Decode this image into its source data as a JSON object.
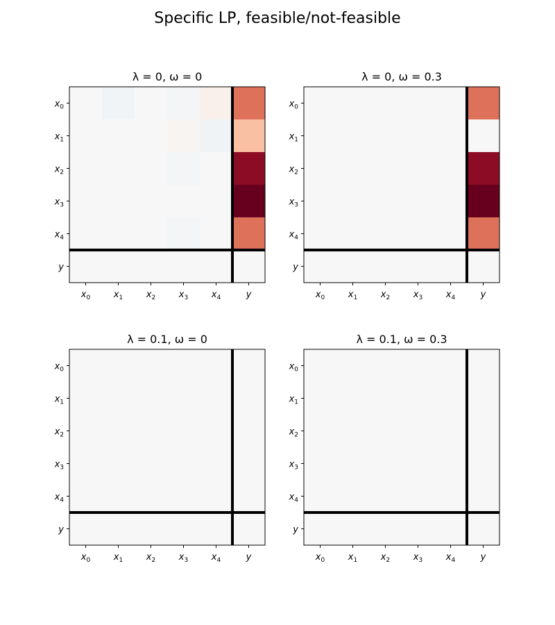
{
  "figure": {
    "title": "Specific LP, feasible/not-feasible"
  },
  "chart_data": [
    {
      "type": "heatmap",
      "title_parts": {
        "lambda": "λ = 0",
        "omega": "ω = 0"
      },
      "title": "λ = 0, ω = 0",
      "row_labels": [
        [
          "x",
          "0"
        ],
        [
          "x",
          "1"
        ],
        [
          "x",
          "2"
        ],
        [
          "x",
          "3"
        ],
        [
          "x",
          "4"
        ],
        [
          "y",
          ""
        ]
      ],
      "col_labels": [
        [
          "x",
          "0"
        ],
        [
          "x",
          "1"
        ],
        [
          "x",
          "2"
        ],
        [
          "x",
          "3"
        ],
        [
          "x",
          "4"
        ],
        [
          "y",
          ""
        ]
      ],
      "vmin": -1,
      "vmax": 1,
      "colormap": "RdBu_r",
      "values": [
        [
          0.0,
          -0.03,
          0.0,
          -0.02,
          0.05,
          0.55
        ],
        [
          0.0,
          0.0,
          0.0,
          0.02,
          -0.04,
          0.3
        ],
        [
          0.0,
          0.0,
          0.0,
          -0.02,
          0.0,
          0.9
        ],
        [
          0.0,
          0.0,
          0.0,
          0.0,
          0.0,
          1.0
        ],
        [
          0.0,
          0.0,
          0.0,
          -0.02,
          0.0,
          0.55
        ],
        [
          0.0,
          0.0,
          0.0,
          0.0,
          0.0,
          0.0
        ]
      ]
    },
    {
      "type": "heatmap",
      "title": "λ = 0, ω = 0.3",
      "row_labels": [
        [
          "x",
          "0"
        ],
        [
          "x",
          "1"
        ],
        [
          "x",
          "2"
        ],
        [
          "x",
          "3"
        ],
        [
          "x",
          "4"
        ],
        [
          "y",
          ""
        ]
      ],
      "col_labels": [
        [
          "x",
          "0"
        ],
        [
          "x",
          "1"
        ],
        [
          "x",
          "2"
        ],
        [
          "x",
          "3"
        ],
        [
          "x",
          "4"
        ],
        [
          "y",
          ""
        ]
      ],
      "vmin": -1,
      "vmax": 1,
      "colormap": "RdBu_r",
      "values": [
        [
          0,
          0,
          0,
          0,
          0,
          0.55
        ],
        [
          0,
          0,
          0,
          0,
          0,
          0.0
        ],
        [
          0,
          0,
          0,
          0,
          0,
          0.9
        ],
        [
          0,
          0,
          0,
          0,
          0,
          1.0
        ],
        [
          0,
          0,
          0,
          0,
          0,
          0.55
        ],
        [
          0,
          0,
          0,
          0,
          0,
          0
        ]
      ]
    },
    {
      "type": "heatmap",
      "title": "λ = 0.1, ω = 0",
      "row_labels": [
        [
          "x",
          "0"
        ],
        [
          "x",
          "1"
        ],
        [
          "x",
          "2"
        ],
        [
          "x",
          "3"
        ],
        [
          "x",
          "4"
        ],
        [
          "y",
          ""
        ]
      ],
      "col_labels": [
        [
          "x",
          "0"
        ],
        [
          "x",
          "1"
        ],
        [
          "x",
          "2"
        ],
        [
          "x",
          "3"
        ],
        [
          "x",
          "4"
        ],
        [
          "y",
          ""
        ]
      ],
      "vmin": -1,
      "vmax": 1,
      "colormap": "RdBu_r",
      "values": [
        [
          0,
          0,
          0,
          0,
          0,
          0
        ],
        [
          0,
          0,
          0,
          0,
          0,
          0
        ],
        [
          0,
          0,
          0,
          0,
          0,
          0
        ],
        [
          0,
          0,
          0,
          0,
          0,
          0
        ],
        [
          0,
          0,
          0,
          0,
          0,
          0
        ],
        [
          0,
          0,
          0,
          0,
          0,
          0
        ]
      ]
    },
    {
      "type": "heatmap",
      "title": "λ = 0.1, ω = 0.3",
      "row_labels": [
        [
          "x",
          "0"
        ],
        [
          "x",
          "1"
        ],
        [
          "x",
          "2"
        ],
        [
          "x",
          "3"
        ],
        [
          "x",
          "4"
        ],
        [
          "y",
          ""
        ]
      ],
      "col_labels": [
        [
          "x",
          "0"
        ],
        [
          "x",
          "1"
        ],
        [
          "x",
          "2"
        ],
        [
          "x",
          "3"
        ],
        [
          "x",
          "4"
        ],
        [
          "y",
          ""
        ]
      ],
      "vmin": -1,
      "vmax": 1,
      "colormap": "RdBu_r",
      "values": [
        [
          0,
          0,
          0,
          0,
          0,
          0
        ],
        [
          0,
          0,
          0,
          0,
          0,
          0
        ],
        [
          0,
          0,
          0,
          0,
          0,
          0
        ],
        [
          0,
          0,
          0,
          0,
          0,
          0
        ],
        [
          0,
          0,
          0,
          0,
          0,
          0
        ],
        [
          0,
          0,
          0,
          0,
          0,
          0
        ]
      ]
    }
  ]
}
